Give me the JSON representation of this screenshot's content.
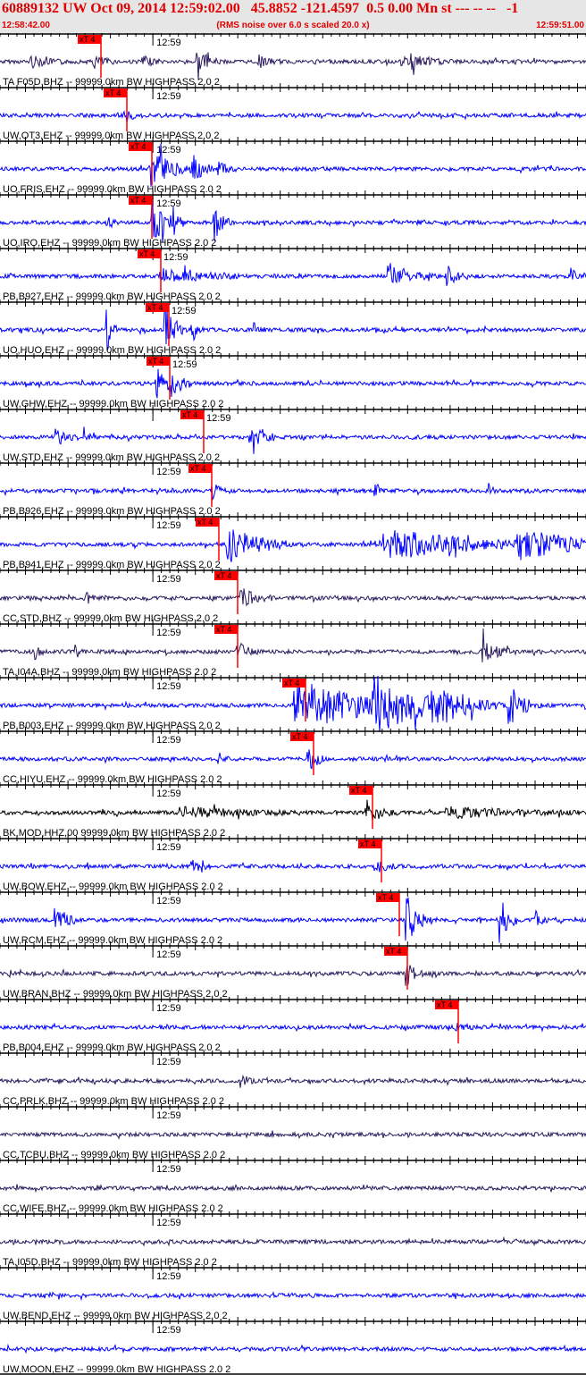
{
  "header": {
    "title": "60889132 UW Oct 09, 2014 12:59:02.00   45.8852 -121.4597  0.5 0.00 Mn st --- -- --   -1",
    "start_time": "12:58:42.00",
    "note": "(RMS noise over 6.0 s scaled 20.0 x)",
    "end_time": "12:59:51.00"
  },
  "minute_label": "12:59",
  "pick_label": "xT 4",
  "colors": {
    "header_text": "#e00000",
    "header_bg": "#e6e6e6",
    "pick": "#ff0000"
  },
  "traces": [
    {
      "label": "TA F05D,BHZ -- 99999.0km BW  HIGHPASS  2.0  2",
      "color": "#2a1a5e"
    },
    {
      "label": "UW,OT3,EHZ -- 99999.0km BW  HIGHPASS  2.0  2",
      "color": "#0000ff"
    },
    {
      "label": "UO,FRIS,EHZ -- 99999.0km BW  HIGHPASS  2.0  2",
      "color": "#0000ff"
    },
    {
      "label": "UO,IRO,EHZ -- 99999.0km BW  HIGHPASS  2.0  2",
      "color": "#0000ff"
    },
    {
      "label": "PB,B927,EHZ -- 99999.0km BW  HIGHPASS  2.0  2",
      "color": "#0000ff"
    },
    {
      "label": "UO,HUO,EHZ -- 99999.0km BW  HIGHPASS  2.0  2",
      "color": "#0000ff"
    },
    {
      "label": "UW,GHW,EHZ -- 99999.0km BW  HIGHPASS  2.0  2",
      "color": "#0000ff"
    },
    {
      "label": "UW,STD,EHZ -- 99999.0km BW  HIGHPASS  2.0  2",
      "color": "#0000ff"
    },
    {
      "label": "PB,B926,EHZ -- 99999.0km BW  HIGHPASS  2.0  2",
      "color": "#0000ff"
    },
    {
      "label": "PB,B941,EHZ -- 99999.0km BW  HIGHPASS  2.0  2",
      "color": "#0000ff"
    },
    {
      "label": "CC,STD,BHZ -- 99999.0km BW  HIGHPASS  2.0  2",
      "color": "#2a1a5e"
    },
    {
      "label": "TA,I04A,BHZ -- 99999.0km BW  HIGHPASS  2.0  2",
      "color": "#2a1a5e"
    },
    {
      "label": "PB,B003,EHZ -- 99999.0km BW  HIGHPASS  2.0  2",
      "color": "#0000ff"
    },
    {
      "label": "CC,HIYU,EHZ -- 99999.0km BW  HIGHPASS  2.0  2",
      "color": "#0000ff"
    },
    {
      "label": "BK,MOD,HHZ,00 99999.0km BW  HIGHPASS  2.0  2",
      "color": "#000000"
    },
    {
      "label": "UW,BOW,EHZ -- 99999.0km BW  HIGHPASS  2.0  2",
      "color": "#0000ff"
    },
    {
      "label": "UW,RCM,EHZ -- 99999.0km BW  HIGHPASS  2.0  2",
      "color": "#0000ff"
    },
    {
      "label": "UW,BRAN,BHZ -- 99999.0km BW  HIGHPASS  2.0  2",
      "color": "#2a1a5e"
    },
    {
      "label": "PB,B004,EHZ -- 99999.0km BW  HIGHPASS  2.0  2",
      "color": "#0000ff"
    },
    {
      "label": "CC,PRLK,BHZ -- 99999.0km BW  HIGHPASS  2.0  2",
      "color": "#2a1a5e"
    },
    {
      "label": "CC,TCBU,BHZ -- 99999.0km BW  HIGHPASS  2.0  2",
      "color": "#2a1a5e"
    },
    {
      "label": "CC,WIFE,BHZ -- 99999.0km BW  HIGHPASS  2.0  2",
      "color": "#2a1a5e"
    },
    {
      "label": "TA,I05D,BHZ -- 99999.0km BW  HIGHPASS  2.0  2",
      "color": "#2a1a5e"
    },
    {
      "label": "UW,BEND,EHZ -- 99999.0km BW  HIGHPASS  2.0  2",
      "color": "#0000ff"
    },
    {
      "label": "UW,MOON,EHZ -- 99999.0km BW  HIGHPASS  2.0  2",
      "color": "#0000ff"
    }
  ]
}
